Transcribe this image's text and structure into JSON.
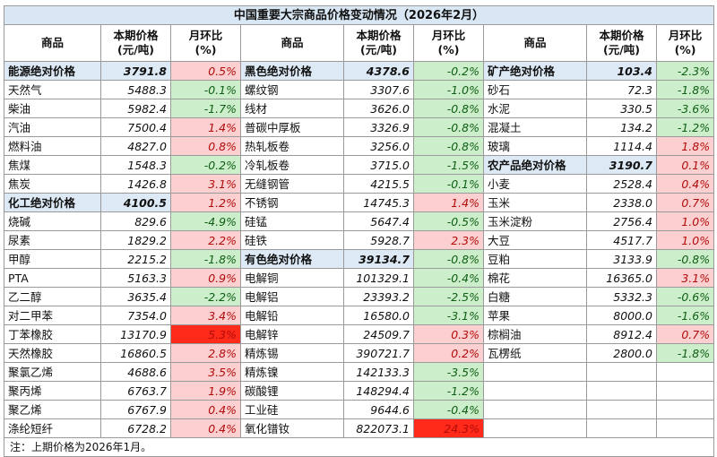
{
  "title": "中国重要大宗商品价格变动情况（2026年2月）",
  "headers": {
    "commodity": "商品",
    "price_line1": "本期价格",
    "price_line2": "(元/吨)",
    "change_line1": "月环比",
    "change_line2": "(%)"
  },
  "groups": [
    [
      {
        "name": "能源绝对价格",
        "price": "3791.8",
        "change": "0.5%",
        "sign": "pos",
        "summary": true
      },
      {
        "name": "天然气",
        "price": "5488.3",
        "change": "-0.1%",
        "sign": "neg"
      },
      {
        "name": "柴油",
        "price": "5982.4",
        "change": "-1.7%",
        "sign": "neg"
      },
      {
        "name": "汽油",
        "price": "7500.4",
        "change": "1.4%",
        "sign": "pos"
      },
      {
        "name": "燃料油",
        "price": "4827.0",
        "change": "0.8%",
        "sign": "pos"
      },
      {
        "name": "焦煤",
        "price": "1548.3",
        "change": "-0.2%",
        "sign": "neg"
      },
      {
        "name": "焦炭",
        "price": "1426.8",
        "change": "3.1%",
        "sign": "pos"
      },
      {
        "name": "化工绝对价格",
        "price": "4100.5",
        "change": "1.2%",
        "sign": "pos",
        "summary": true
      },
      {
        "name": "烧碱",
        "price": "829.6",
        "change": "-4.9%",
        "sign": "neg"
      },
      {
        "name": "尿素",
        "price": "1829.2",
        "change": "2.2%",
        "sign": "pos"
      },
      {
        "name": "甲醇",
        "price": "2215.2",
        "change": "-1.8%",
        "sign": "neg"
      },
      {
        "name": "PTA",
        "price": "5163.3",
        "change": "0.9%",
        "sign": "pos"
      },
      {
        "name": "乙二醇",
        "price": "3635.4",
        "change": "-2.2%",
        "sign": "neg"
      },
      {
        "name": "对二甲苯",
        "price": "7354.0",
        "change": "3.4%",
        "sign": "pos"
      },
      {
        "name": "丁苯橡胶",
        "price": "13170.9",
        "change": "5.3%",
        "sign": "hot"
      },
      {
        "name": "天然橡胶",
        "price": "16860.5",
        "change": "2.8%",
        "sign": "pos"
      },
      {
        "name": "聚氯乙烯",
        "price": "4688.6",
        "change": "3.5%",
        "sign": "pos"
      },
      {
        "name": "聚丙烯",
        "price": "6763.7",
        "change": "1.9%",
        "sign": "pos"
      },
      {
        "name": "聚乙烯",
        "price": "6767.9",
        "change": "0.4%",
        "sign": "pos"
      },
      {
        "name": "涤纶短纤",
        "price": "6728.2",
        "change": "0.4%",
        "sign": "pos"
      }
    ],
    [
      {
        "name": "黑色绝对价格",
        "price": "4378.6",
        "change": "-0.2%",
        "sign": "neg",
        "summary": true
      },
      {
        "name": "螺纹钢",
        "price": "3307.6",
        "change": "-1.0%",
        "sign": "neg"
      },
      {
        "name": "线材",
        "price": "3626.0",
        "change": "-0.8%",
        "sign": "neg"
      },
      {
        "name": "普碳中厚板",
        "price": "3326.9",
        "change": "-0.8%",
        "sign": "neg"
      },
      {
        "name": "热轧板卷",
        "price": "3256.0",
        "change": "-0.8%",
        "sign": "neg"
      },
      {
        "name": "冷轧板卷",
        "price": "3715.0",
        "change": "-1.5%",
        "sign": "neg"
      },
      {
        "name": "无缝钢管",
        "price": "4215.5",
        "change": "-0.1%",
        "sign": "neg"
      },
      {
        "name": "不锈钢",
        "price": "14745.3",
        "change": "1.4%",
        "sign": "pos"
      },
      {
        "name": "硅锰",
        "price": "5647.4",
        "change": "-0.5%",
        "sign": "neg"
      },
      {
        "name": "硅铁",
        "price": "5928.7",
        "change": "2.3%",
        "sign": "pos"
      },
      {
        "name": "有色绝对价格",
        "price": "39134.7",
        "change": "-0.8%",
        "sign": "neg",
        "summary": true
      },
      {
        "name": "电解铜",
        "price": "101329.1",
        "change": "-0.4%",
        "sign": "neg"
      },
      {
        "name": "电解铝",
        "price": "23393.2",
        "change": "-2.5%",
        "sign": "neg"
      },
      {
        "name": "电解铅",
        "price": "16580.0",
        "change": "-3.1%",
        "sign": "neg"
      },
      {
        "name": "电解锌",
        "price": "24509.7",
        "change": "0.3%",
        "sign": "pos"
      },
      {
        "name": "精炼锡",
        "price": "390721.7",
        "change": "0.2%",
        "sign": "pos"
      },
      {
        "name": "精炼镍",
        "price": "142133.3",
        "change": "-3.5%",
        "sign": "neg"
      },
      {
        "name": "碳酸锂",
        "price": "148294.4",
        "change": "-1.2%",
        "sign": "neg"
      },
      {
        "name": "工业硅",
        "price": "9644.6",
        "change": "-0.4%",
        "sign": "neg"
      },
      {
        "name": "氧化镨钕",
        "price": "822073.1",
        "change": "24.3%",
        "sign": "hot"
      }
    ],
    [
      {
        "name": "矿产绝对价格",
        "price": "103.4",
        "change": "-2.3%",
        "sign": "neg",
        "summary": true
      },
      {
        "name": "砂石",
        "price": "72.3",
        "change": "-1.8%",
        "sign": "neg"
      },
      {
        "name": "水泥",
        "price": "330.5",
        "change": "-3.6%",
        "sign": "neg"
      },
      {
        "name": "混凝土",
        "price": "134.2",
        "change": "-1.2%",
        "sign": "neg"
      },
      {
        "name": "玻璃",
        "price": "1114.4",
        "change": "1.8%",
        "sign": "pos"
      },
      {
        "name": "农产品绝对价格",
        "price": "3190.7",
        "change": "0.1%",
        "sign": "pos",
        "summary": true
      },
      {
        "name": "小麦",
        "price": "2528.4",
        "change": "0.4%",
        "sign": "pos"
      },
      {
        "name": "玉米",
        "price": "2338.0",
        "change": "0.7%",
        "sign": "pos"
      },
      {
        "name": "玉米淀粉",
        "price": "2756.4",
        "change": "1.0%",
        "sign": "pos"
      },
      {
        "name": "大豆",
        "price": "4517.7",
        "change": "1.0%",
        "sign": "pos"
      },
      {
        "name": "豆粕",
        "price": "3133.9",
        "change": "-0.8%",
        "sign": "neg"
      },
      {
        "name": "棉花",
        "price": "16365.0",
        "change": "3.1%",
        "sign": "pos"
      },
      {
        "name": "白糖",
        "price": "5332.3",
        "change": "-0.6%",
        "sign": "neg"
      },
      {
        "name": "苹果",
        "price": "8000.0",
        "change": "-1.6%",
        "sign": "neg"
      },
      {
        "name": "棕榈油",
        "price": "8912.4",
        "change": "0.7%",
        "sign": "pos"
      },
      {
        "name": "瓦楞纸",
        "price": "2800.0",
        "change": "-1.8%",
        "sign": "neg"
      }
    ]
  ],
  "note": "注：上期价格为2026年1月。"
}
